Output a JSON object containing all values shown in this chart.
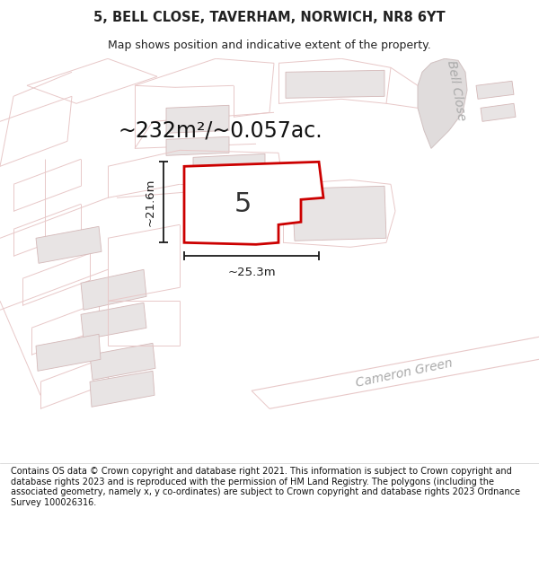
{
  "title": "5, BELL CLOSE, TAVERHAM, NORWICH, NR8 6YT",
  "subtitle": "Map shows position and indicative extent of the property.",
  "area_text": "~232m²/~0.057ac.",
  "property_number": "5",
  "dim_width": "~25.3m",
  "dim_height": "~21.6m",
  "footer": "Contains OS data © Crown copyright and database right 2021. This information is subject to Crown copyright and database rights 2023 and is reproduced with the permission of HM Land Registry. The polygons (including the associated geometry, namely x, y co-ordinates) are subject to Crown copyright and database rights 2023 Ordnance Survey 100026316.",
  "bg_color": "#f7f5f5",
  "map_bg": "#f7f5f5",
  "road_color": "#e8c8c8",
  "building_fill": "#e8e4e4",
  "building_edge": "#d4b8b8",
  "plot_fill": "#eeebeb",
  "plot_edge": "#e0c0c0",
  "property_outline_color": "#cc0000",
  "property_fill": "#ffffff",
  "dim_line_color": "#1a1a1a",
  "text_color": "#222222",
  "footer_bg": "#ffffff",
  "bell_close_text": "Bell Close",
  "cameron_green_text": "Cameron Green",
  "title_fontsize": 10.5,
  "subtitle_fontsize": 9,
  "area_fontsize": 17,
  "dim_fontsize": 9.5,
  "label_fontsize": 10,
  "number_fontsize": 22
}
